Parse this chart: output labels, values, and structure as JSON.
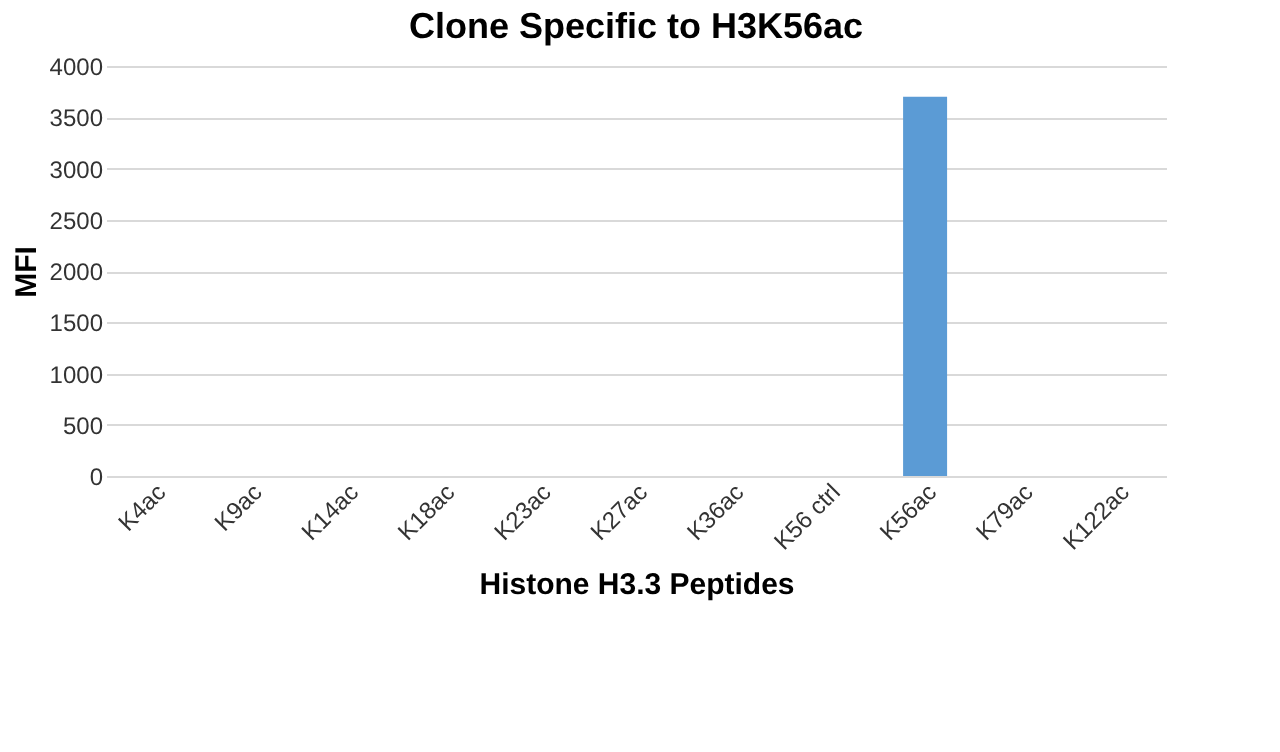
{
  "chart_data": {
    "type": "bar",
    "title": "Clone Specific to H3K56ac",
    "xlabel": "Histone H3.3 Peptides",
    "ylabel": "MFI",
    "categories": [
      "K4ac",
      "K9ac",
      "K14ac",
      "K18ac",
      "K23ac",
      "K27ac",
      "K36ac",
      "K56 ctrl",
      "K56ac",
      "K79ac",
      "K122ac"
    ],
    "values": [
      0,
      0,
      0,
      0,
      0,
      0,
      0,
      0,
      3700,
      0,
      0
    ],
    "color": "#5b9bd5",
    "ylim": [
      0,
      4000
    ],
    "yticks": [
      0,
      500,
      1000,
      1500,
      2000,
      2500,
      3000,
      3500,
      4000
    ],
    "grid": "y"
  }
}
